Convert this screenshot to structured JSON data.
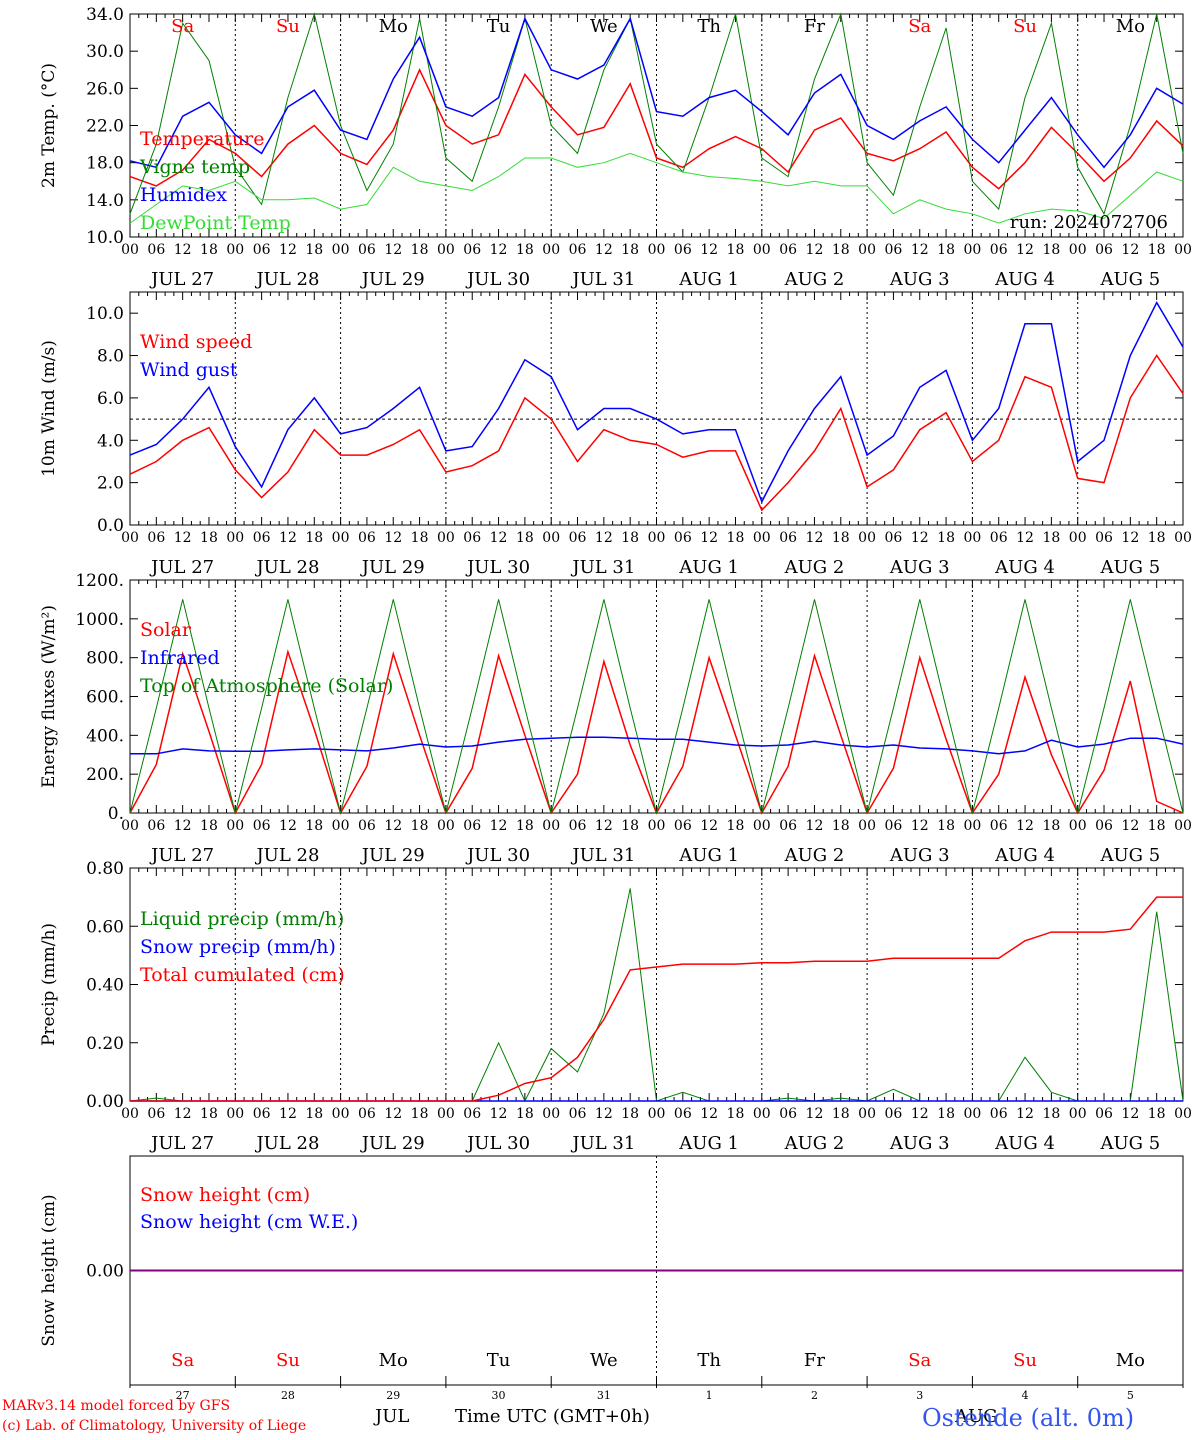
{
  "days": {
    "weekday": [
      "Sa",
      "Su",
      "Mo",
      "Tu",
      "We",
      "Th",
      "Fr",
      "Sa",
      "Su",
      "Mo"
    ],
    "weekend": [
      true,
      true,
      false,
      false,
      false,
      false,
      false,
      true,
      true,
      false
    ],
    "date_label": [
      "JUL 27",
      "JUL 28",
      "JUL 29",
      "JUL 30",
      "JUL 31",
      "AUG  1",
      "AUG  2",
      "AUG  3",
      "AUG  4",
      "AUG  5"
    ],
    "day_number": [
      "27",
      "28",
      "29",
      "30",
      "31",
      "1",
      "2",
      "3",
      "4",
      "5"
    ],
    "hour_ticks": [
      "00",
      "06",
      "12",
      "18"
    ]
  },
  "colors": {
    "red": "#ff0000",
    "green": "#008000",
    "blue": "#0000ff",
    "lightgreen": "#33dd33",
    "purple": "#800080"
  },
  "footer": {
    "model": "MARv3.14 model forced by GFS",
    "copyright": "(c) Lab. of Climatology, University of Liege",
    "month_jul": "JUL",
    "month_aug": "AUG",
    "time_axis": "Time UTC (GMT+0h)",
    "station": "Ostende (alt. 0m)"
  },
  "chart_data": [
    {
      "id": "temperature",
      "type": "line",
      "ylabel": "2m Temp. (°C)",
      "ylim": [
        10,
        34
      ],
      "yticks": [
        "10.0",
        "14.0",
        "18.0",
        "22.0",
        "26.0",
        "30.0",
        "34.0"
      ],
      "run_label": "run: 2024072706",
      "x_hours": [
        0,
        6,
        12,
        18,
        24,
        30,
        36,
        42,
        48,
        54,
        60,
        66,
        72,
        78,
        84,
        90,
        96,
        102,
        108,
        114,
        120,
        126,
        132,
        138,
        144,
        150,
        156,
        162,
        168,
        174,
        180,
        186,
        192,
        198,
        204,
        210,
        216,
        222,
        228,
        234,
        240
      ],
      "series": [
        {
          "name": "Temperature",
          "color": "red",
          "values": [
            16.5,
            15.5,
            17.2,
            20.5,
            19.0,
            16.5,
            20.0,
            22.0,
            19.0,
            17.8,
            21.5,
            28.0,
            22.0,
            20.0,
            21.0,
            27.5,
            24.0,
            21.0,
            21.8,
            26.5,
            18.5,
            17.5,
            19.5,
            20.8,
            19.5,
            17.0,
            21.5,
            22.8,
            19.0,
            18.2,
            19.5,
            21.3,
            17.5,
            15.2,
            18.0,
            21.8,
            19.0,
            16.0,
            18.5,
            22.5,
            19.8
          ]
        },
        {
          "name": "Vigne temp",
          "color": "green",
          "values": [
            12.5,
            20.0,
            33.0,
            29.0,
            17.5,
            13.5,
            25.0,
            34.0,
            22.0,
            15.0,
            20.0,
            33.5,
            18.5,
            16.0,
            24.0,
            33.5,
            22.0,
            19.0,
            28.0,
            33.5,
            20.0,
            17.0,
            25.0,
            34.0,
            18.5,
            16.5,
            27.0,
            34.0,
            18.0,
            14.5,
            24.0,
            32.5,
            16.0,
            13.0,
            25.0,
            33.0,
            17.5,
            12.5,
            22.0,
            34.0,
            19.0
          ]
        },
        {
          "name": "Humidex",
          "color": "blue",
          "values": [
            18.2,
            17.5,
            23.0,
            24.5,
            21.0,
            19.0,
            24.0,
            25.8,
            21.5,
            20.5,
            27.0,
            31.5,
            24.0,
            23.0,
            25.0,
            33.5,
            28.0,
            27.0,
            28.5,
            33.5,
            23.5,
            23.0,
            25.0,
            25.8,
            23.5,
            21.0,
            25.5,
            27.5,
            22.0,
            20.5,
            22.5,
            24.0,
            20.5,
            18.0,
            21.5,
            25.0,
            21.0,
            17.5,
            21.0,
            26.0,
            24.3
          ]
        },
        {
          "name": "DewPoint Temp",
          "color": "lightgreen",
          "values": [
            11.5,
            13.5,
            15.5,
            15.0,
            16.0,
            14.0,
            14.0,
            14.2,
            13.0,
            13.5,
            17.5,
            16.0,
            15.5,
            15.0,
            16.5,
            18.5,
            18.5,
            17.5,
            18.0,
            19.0,
            18.0,
            17.0,
            16.5,
            16.3,
            16.0,
            15.5,
            16.0,
            15.5,
            15.5,
            12.5,
            14.0,
            13.0,
            12.5,
            11.5,
            12.5,
            13.0,
            12.8,
            12.0,
            14.5,
            17.0,
            16.0
          ]
        }
      ]
    },
    {
      "id": "wind",
      "type": "line",
      "ylabel": "10m Wind (m/s)",
      "ylim": [
        0,
        11
      ],
      "yticks": [
        "0.0",
        "2.0",
        "4.0",
        "6.0",
        "8.0",
        "10.0"
      ],
      "reference_line": 5,
      "x_hours": [
        0,
        6,
        12,
        18,
        24,
        30,
        36,
        42,
        48,
        54,
        60,
        66,
        72,
        78,
        84,
        90,
        96,
        102,
        108,
        114,
        120,
        126,
        132,
        138,
        144,
        150,
        156,
        162,
        168,
        174,
        180,
        186,
        192,
        198,
        204,
        210,
        216,
        222,
        228,
        234,
        240
      ],
      "series": [
        {
          "name": "Wind speed",
          "color": "red",
          "values": [
            2.4,
            3.0,
            4.0,
            4.6,
            2.6,
            1.3,
            2.5,
            4.5,
            3.3,
            3.3,
            3.8,
            4.5,
            2.5,
            2.8,
            3.5,
            6.0,
            5.0,
            3.0,
            4.5,
            4.0,
            3.8,
            3.2,
            3.5,
            3.5,
            0.7,
            2.0,
            3.5,
            5.5,
            1.8,
            2.6,
            4.5,
            5.3,
            3.0,
            4.0,
            7.0,
            6.5,
            2.2,
            2.0,
            6.0,
            8.0,
            6.2
          ]
        },
        {
          "name": "Wind gust",
          "color": "blue",
          "values": [
            3.3,
            3.8,
            5.0,
            6.5,
            3.7,
            1.8,
            4.5,
            6.0,
            4.3,
            4.6,
            5.5,
            6.5,
            3.5,
            3.7,
            5.5,
            7.8,
            7.0,
            4.5,
            5.5,
            5.5,
            5.0,
            4.3,
            4.5,
            4.5,
            1.1,
            3.5,
            5.5,
            7.0,
            3.3,
            4.2,
            6.5,
            7.3,
            4.0,
            5.5,
            9.5,
            9.5,
            3.0,
            4.0,
            8.0,
            10.5,
            8.4
          ]
        }
      ]
    },
    {
      "id": "energy",
      "type": "line",
      "ylabel": "Energy fluxes (W/m²)",
      "ylim": [
        0,
        1200
      ],
      "yticks": [
        "0.",
        "200.",
        "400.",
        "600.",
        "800.",
        "1000.",
        "1200."
      ],
      "x_hours": [
        0,
        6,
        12,
        18,
        24,
        30,
        36,
        42,
        48,
        54,
        60,
        66,
        72,
        78,
        84,
        90,
        96,
        102,
        108,
        114,
        120,
        126,
        132,
        138,
        144,
        150,
        156,
        162,
        168,
        174,
        180,
        186,
        192,
        198,
        204,
        210,
        216,
        222,
        228,
        234,
        240
      ],
      "series": [
        {
          "name": "Solar",
          "color": "red",
          "values": [
            0,
            250,
            820,
            420,
            0,
            250,
            830,
            430,
            0,
            240,
            820,
            400,
            0,
            230,
            810,
            400,
            0,
            200,
            780,
            350,
            0,
            240,
            800,
            400,
            0,
            240,
            810,
            400,
            0,
            230,
            800,
            380,
            0,
            200,
            700,
            300,
            0,
            220,
            680,
            60,
            0
          ]
        },
        {
          "name": "Infrared",
          "color": "blue",
          "values": [
            305,
            305,
            330,
            320,
            318,
            318,
            325,
            330,
            325,
            320,
            335,
            355,
            340,
            345,
            365,
            380,
            385,
            390,
            390,
            385,
            380,
            380,
            365,
            350,
            345,
            350,
            370,
            350,
            340,
            350,
            335,
            330,
            320,
            305,
            320,
            375,
            340,
            355,
            385,
            385,
            355
          ]
        },
        {
          "name": "Top of Atmosphere (Solar)",
          "color": "green",
          "values": [
            0,
            540,
            1100,
            540,
            0,
            540,
            1100,
            540,
            0,
            540,
            1100,
            540,
            0,
            540,
            1100,
            540,
            0,
            540,
            1100,
            540,
            0,
            540,
            1100,
            540,
            0,
            540,
            1100,
            540,
            0,
            540,
            1100,
            540,
            0,
            540,
            1100,
            540,
            0,
            540,
            1100,
            540,
            0
          ]
        }
      ]
    },
    {
      "id": "precip",
      "type": "line",
      "ylabel": "Precip (mm/h)",
      "ylim": [
        0,
        0.8
      ],
      "yticks": [
        "0.00",
        "0.20",
        "0.40",
        "0.60",
        "0.80"
      ],
      "x_hours": [
        0,
        6,
        12,
        18,
        24,
        30,
        36,
        42,
        48,
        54,
        60,
        66,
        72,
        78,
        84,
        90,
        96,
        102,
        108,
        114,
        120,
        126,
        132,
        138,
        144,
        150,
        156,
        162,
        168,
        174,
        180,
        186,
        192,
        198,
        204,
        210,
        216,
        222,
        228,
        234,
        240
      ],
      "series": [
        {
          "name": "Liquid precip (mm/h)",
          "color": "green",
          "values": [
            0,
            0.01,
            0,
            0,
            0,
            0,
            0,
            0,
            0,
            0,
            0,
            0,
            0,
            0,
            0.2,
            0,
            0.18,
            0.1,
            0.3,
            0.73,
            0,
            0.03,
            0,
            0,
            0,
            0.01,
            0,
            0.01,
            0,
            0.04,
            0,
            0,
            0,
            0,
            0.15,
            0.03,
            0,
            0,
            0,
            0.65,
            0
          ]
        },
        {
          "name": "Snow precip (mm/h)",
          "color": "blue",
          "values": [
            0,
            0,
            0,
            0,
            0,
            0,
            0,
            0,
            0,
            0,
            0,
            0,
            0,
            0,
            0,
            0,
            0,
            0,
            0,
            0,
            0,
            0,
            0,
            0,
            0,
            0,
            0,
            0,
            0,
            0,
            0,
            0,
            0,
            0,
            0,
            0,
            0,
            0,
            0,
            0,
            0
          ]
        },
        {
          "name": "Total cumulated (cm)",
          "color": "red",
          "values": [
            0,
            0,
            0,
            0,
            0,
            0,
            0,
            0,
            0,
            0,
            0,
            0,
            0,
            0,
            0.02,
            0.06,
            0.08,
            0.15,
            0.28,
            0.45,
            0.46,
            0.47,
            0.47,
            0.47,
            0.475,
            0.475,
            0.48,
            0.48,
            0.48,
            0.49,
            0.49,
            0.49,
            0.49,
            0.49,
            0.55,
            0.58,
            0.58,
            0.58,
            0.59,
            0.7,
            0.7
          ]
        }
      ]
    },
    {
      "id": "snow",
      "type": "line",
      "ylabel": "Snow height (cm)",
      "ylim": [
        -1,
        1
      ],
      "yticks": [
        "0.00"
      ],
      "x_hours": [
        0,
        240
      ],
      "series": [
        {
          "name": "Snow height (cm)",
          "color": "red",
          "values": [
            0,
            0
          ]
        },
        {
          "name": "Snow height (cm W.E.)",
          "color": "blue",
          "values": [
            0,
            0
          ]
        }
      ]
    }
  ]
}
